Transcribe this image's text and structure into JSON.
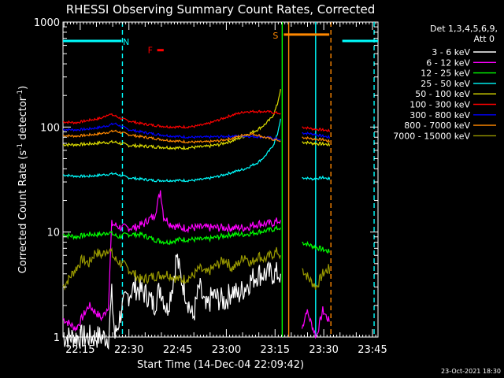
{
  "chart_data": {
    "type": "line",
    "title": "RHESSI Observing Summary Count Rates, Corrected",
    "xlabel": "Start Time (14-Dec-04 22:09:42)",
    "ylabel_main": "Corrected Count Rate (s",
    "ylabel_sup1": "-1",
    "ylabel_mid": " detector",
    "ylabel_sup2": "-1",
    "ylabel_end": ")",
    "y_scale": "log",
    "ylim": [
      1,
      1000
    ],
    "xlim_min": [
      0,
      97
    ],
    "x_ticks": [
      {
        "min": 5.3,
        "label": "22:15"
      },
      {
        "min": 20.3,
        "label": "22:30"
      },
      {
        "min": 35.3,
        "label": "22:45"
      },
      {
        "min": 50.3,
        "label": "23:00"
      },
      {
        "min": 65.3,
        "label": "23:15"
      },
      {
        "min": 80.3,
        "label": "23:30"
      },
      {
        "min": 95.3,
        "label": "23:45"
      }
    ],
    "y_ticks": [
      {
        "v": 1,
        "label": "1"
      },
      {
        "v": 10,
        "label": "10"
      },
      {
        "v": 100,
        "label": "100"
      },
      {
        "v": 1000,
        "label": "1000"
      }
    ],
    "legend_header": [
      "Det 1,3,4,5,6,9,",
      "Att 0"
    ],
    "series": [
      {
        "name": "3 - 6 keV",
        "color": "#ffffff",
        "points": [
          [
            0,
            1
          ],
          [
            14,
            1
          ],
          [
            15,
            2.5
          ],
          [
            16,
            1
          ],
          [
            18,
            1.8
          ],
          [
            20,
            2.5
          ],
          [
            22,
            3
          ],
          [
            26,
            2.5
          ],
          [
            28,
            2
          ],
          [
            30,
            3
          ],
          [
            32,
            1.8
          ],
          [
            34,
            3.5
          ],
          [
            35,
            6
          ],
          [
            36,
            4
          ],
          [
            38,
            2.5
          ],
          [
            40,
            1.5
          ],
          [
            42,
            3
          ],
          [
            44,
            1.8
          ],
          [
            46,
            2.5
          ],
          [
            48,
            2.3
          ],
          [
            50,
            2.2
          ],
          [
            52,
            2.8
          ],
          [
            54,
            2.5
          ],
          [
            56,
            3
          ],
          [
            58,
            3.5
          ],
          [
            60,
            4
          ],
          [
            62,
            4
          ],
          [
            64,
            4
          ],
          [
            66,
            4
          ],
          [
            67,
            4
          ]
        ]
      },
      {
        "name": "6 - 12 keV",
        "color": "#ff00ff",
        "points": [
          [
            0,
            1.5
          ],
          [
            4,
            1.2
          ],
          [
            8,
            2
          ],
          [
            12,
            1.5
          ],
          [
            14,
            2
          ],
          [
            15,
            12
          ],
          [
            18,
            11
          ],
          [
            22,
            11
          ],
          [
            25,
            12
          ],
          [
            26,
            13
          ],
          [
            28,
            14
          ],
          [
            29,
            18
          ],
          [
            30,
            25
          ],
          [
            31,
            14
          ],
          [
            33,
            12
          ],
          [
            36,
            11
          ],
          [
            40,
            11
          ],
          [
            44,
            11
          ],
          [
            48,
            11
          ],
          [
            52,
            11
          ],
          [
            56,
            11
          ],
          [
            60,
            12
          ],
          [
            64,
            12
          ],
          [
            67,
            13
          ]
        ]
      },
      {
        "name": "12 - 25 keV",
        "color": "#00ff00",
        "points": [
          [
            0,
            9.5
          ],
          [
            4,
            9
          ],
          [
            8,
            9.5
          ],
          [
            12,
            9.5
          ],
          [
            14,
            10
          ],
          [
            17,
            9
          ],
          [
            20,
            9.5
          ],
          [
            24,
            9.5
          ],
          [
            28,
            8.5
          ],
          [
            32,
            8
          ],
          [
            36,
            8.5
          ],
          [
            40,
            8.5
          ],
          [
            44,
            8.5
          ],
          [
            48,
            9
          ],
          [
            52,
            9.5
          ],
          [
            56,
            9.5
          ],
          [
            60,
            10
          ],
          [
            64,
            10.5
          ],
          [
            67,
            11
          ]
        ]
      },
      {
        "name": "25 - 50 keV",
        "color": "#00ffff",
        "points": [
          [
            0,
            35
          ],
          [
            4,
            34
          ],
          [
            8,
            34
          ],
          [
            12,
            35
          ],
          [
            16,
            36
          ],
          [
            20,
            33
          ],
          [
            24,
            32
          ],
          [
            28,
            31
          ],
          [
            32,
            31
          ],
          [
            36,
            31
          ],
          [
            40,
            31
          ],
          [
            44,
            32
          ],
          [
            48,
            34
          ],
          [
            52,
            37
          ],
          [
            56,
            40
          ],
          [
            60,
            46
          ],
          [
            62,
            52
          ],
          [
            64,
            62
          ],
          [
            65,
            70
          ],
          [
            66,
            85
          ],
          [
            67,
            120
          ]
        ]
      },
      {
        "name": "50 - 100 keV",
        "color": "#dddd00",
        "points": [
          [
            0,
            68
          ],
          [
            4,
            68
          ],
          [
            8,
            69
          ],
          [
            12,
            71
          ],
          [
            16,
            72
          ],
          [
            20,
            67
          ],
          [
            24,
            66
          ],
          [
            28,
            65
          ],
          [
            32,
            64
          ],
          [
            36,
            63
          ],
          [
            40,
            64
          ],
          [
            44,
            65
          ],
          [
            48,
            68
          ],
          [
            52,
            74
          ],
          [
            56,
            82
          ],
          [
            60,
            95
          ],
          [
            62,
            105
          ],
          [
            64,
            120
          ],
          [
            65,
            135
          ],
          [
            66,
            165
          ],
          [
            67,
            230
          ]
        ]
      },
      {
        "name": "100 - 300 keV",
        "color": "#ff0000",
        "points": [
          [
            0,
            112
          ],
          [
            4,
            110
          ],
          [
            8,
            116
          ],
          [
            12,
            122
          ],
          [
            14,
            133
          ],
          [
            16,
            128
          ],
          [
            18,
            120
          ],
          [
            20,
            115
          ],
          [
            24,
            108
          ],
          [
            28,
            104
          ],
          [
            32,
            101
          ],
          [
            36,
            100
          ],
          [
            40,
            101
          ],
          [
            44,
            106
          ],
          [
            48,
            117
          ],
          [
            52,
            130
          ],
          [
            56,
            140
          ],
          [
            60,
            141
          ],
          [
            63,
            140
          ],
          [
            65,
            137
          ],
          [
            67,
            135
          ]
        ]
      },
      {
        "name": "300 - 800 keV",
        "color": "#0000ff",
        "points": [
          [
            0,
            95
          ],
          [
            4,
            94
          ],
          [
            8,
            96
          ],
          [
            12,
            100
          ],
          [
            16,
            108
          ],
          [
            20,
            95
          ],
          [
            24,
            90
          ],
          [
            28,
            86
          ],
          [
            32,
            83
          ],
          [
            36,
            81
          ],
          [
            40,
            80
          ],
          [
            44,
            80
          ],
          [
            48,
            81
          ],
          [
            52,
            82
          ],
          [
            56,
            82
          ],
          [
            60,
            81
          ],
          [
            64,
            79
          ],
          [
            67,
            76
          ]
        ]
      },
      {
        "name": "800 - 7000 keV",
        "color": "#ff8800",
        "points": [
          [
            0,
            83
          ],
          [
            4,
            82
          ],
          [
            8,
            84
          ],
          [
            12,
            87
          ],
          [
            16,
            92
          ],
          [
            20,
            85
          ],
          [
            24,
            81
          ],
          [
            28,
            78
          ],
          [
            32,
            75
          ],
          [
            36,
            73
          ],
          [
            40,
            72
          ],
          [
            44,
            72
          ],
          [
            48,
            74
          ],
          [
            52,
            78
          ],
          [
            56,
            85
          ],
          [
            58,
            86
          ],
          [
            60,
            84
          ],
          [
            62,
            80
          ],
          [
            64,
            77
          ],
          [
            67,
            74
          ]
        ]
      },
      {
        "name": "7000 - 15000 keV",
        "color": "#999900",
        "points": [
          [
            0,
            3
          ],
          [
            4,
            4.5
          ],
          [
            6,
            5.5
          ],
          [
            8,
            5
          ],
          [
            10,
            6.5
          ],
          [
            12,
            6
          ],
          [
            14,
            7
          ],
          [
            16,
            5.5
          ],
          [
            18,
            5
          ],
          [
            20,
            4.5
          ],
          [
            24,
            3.5
          ],
          [
            28,
            3.8
          ],
          [
            32,
            4
          ],
          [
            36,
            3.5
          ],
          [
            40,
            3.8
          ],
          [
            42,
            4.5
          ],
          [
            44,
            4
          ],
          [
            46,
            4.5
          ],
          [
            48,
            5
          ],
          [
            50,
            5.5
          ],
          [
            52,
            4.5
          ],
          [
            54,
            5
          ],
          [
            56,
            6
          ],
          [
            58,
            5
          ],
          [
            60,
            6
          ],
          [
            62,
            5.5
          ],
          [
            64,
            6
          ],
          [
            66,
            6.5
          ],
          [
            67,
            6
          ]
        ]
      }
    ],
    "post_gap": [
      {
        "series": 5,
        "points": [
          [
            73.6,
            100
          ],
          [
            77,
            96
          ],
          [
            80,
            94
          ],
          [
            82,
            92
          ],
          [
            82.1,
            90
          ]
        ]
      },
      {
        "series": 6,
        "points": [
          [
            73.6,
            88
          ],
          [
            77,
            86
          ],
          [
            80,
            82
          ],
          [
            82,
            80
          ],
          [
            82.1,
            78
          ]
        ]
      },
      {
        "series": 7,
        "points": [
          [
            73.6,
            80
          ],
          [
            77,
            77
          ],
          [
            80,
            76
          ],
          [
            82,
            73
          ],
          [
            82.1,
            72
          ]
        ]
      },
      {
        "series": 4,
        "points": [
          [
            73.6,
            72
          ],
          [
            77,
            70
          ],
          [
            80,
            69
          ],
          [
            82,
            68
          ],
          [
            82.1,
            66
          ]
        ]
      },
      {
        "series": 3,
        "points": [
          [
            73.6,
            33
          ],
          [
            77,
            32
          ],
          [
            80,
            33
          ],
          [
            82,
            32
          ],
          [
            82.1,
            33
          ]
        ]
      },
      {
        "series": 2,
        "points": [
          [
            73.6,
            8
          ],
          [
            76,
            7.5
          ],
          [
            79,
            7
          ],
          [
            82,
            6.5
          ],
          [
            82.1,
            6.5
          ]
        ]
      },
      {
        "series": 8,
        "points": [
          [
            73.6,
            4.5
          ],
          [
            76,
            3.5
          ],
          [
            78,
            3
          ],
          [
            80,
            4
          ],
          [
            82,
            4.5
          ],
          [
            82.1,
            4
          ]
        ]
      },
      {
        "series": 1,
        "points": [
          [
            73.6,
            1.2
          ],
          [
            75,
            1.8
          ],
          [
            78,
            1
          ],
          [
            80,
            1.8
          ],
          [
            82,
            1.4
          ]
        ]
      }
    ],
    "flag_bars": [
      {
        "label": "N",
        "color": "#00ffff",
        "segments": [
          [
            0,
            18
          ],
          [
            86,
            97
          ]
        ],
        "value": 660
      },
      {
        "label": "F",
        "color": "#ff0000",
        "segments": [
          [
            29,
            31
          ]
        ],
        "value": 540
      },
      {
        "label": "S",
        "color": "#ff8800",
        "segments": [
          [
            68,
            82
          ]
        ],
        "value": 760
      }
    ],
    "vlines": [
      {
        "min": 18.3,
        "color": "#00ffff",
        "dashed": true
      },
      {
        "min": 67.5,
        "color": "#00ff00",
        "dashed": false
      },
      {
        "min": 69.5,
        "color": "#ff8800",
        "dashed": false
      },
      {
        "min": 77.8,
        "color": "#00ffff",
        "dashed": false
      },
      {
        "min": 82.5,
        "color": "#ff8800",
        "dashed": true
      },
      {
        "min": 95.8,
        "color": "#00ffff",
        "dashed": true
      }
    ]
  },
  "footer_date": "23-Oct-2021 18:30"
}
